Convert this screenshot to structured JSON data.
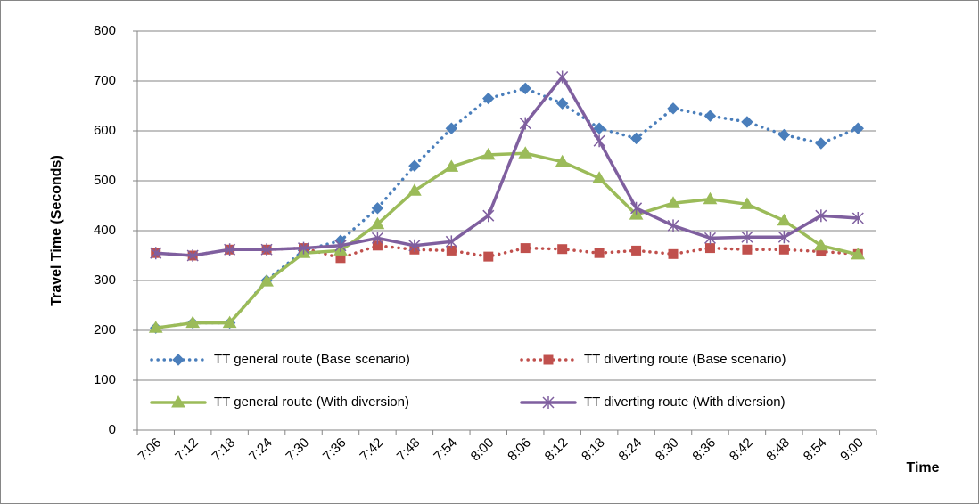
{
  "chart_data": {
    "type": "line",
    "y_label": "Travel Time (Seconds)",
    "x_label": "Time",
    "categories": [
      "7:06",
      "7:12",
      "7:18",
      "7:24",
      "7:30",
      "7:36",
      "7:42",
      "7:48",
      "7:54",
      "8:00",
      "8:06",
      "8:12",
      "8:18",
      "8:24",
      "8:30",
      "8:36",
      "8:42",
      "8:48",
      "8:54",
      "9:00"
    ],
    "ylim": [
      0,
      800
    ],
    "yticks": [
      0,
      100,
      200,
      300,
      400,
      500,
      600,
      700,
      800
    ],
    "grid": true,
    "series": [
      {
        "name": "TT general route (Base scenario)",
        "color": "#4a7ebb",
        "style": "dotted",
        "marker": "diamond",
        "values": [
          205,
          215,
          215,
          300,
          360,
          380,
          445,
          530,
          605,
          665,
          685,
          655,
          605,
          585,
          645,
          630,
          618,
          592,
          575,
          605
        ]
      },
      {
        "name": "TT diverting route (Base scenario)",
        "color": "#c0504d",
        "style": "dotted",
        "marker": "square",
        "values": [
          355,
          350,
          362,
          362,
          365,
          345,
          370,
          362,
          360,
          348,
          365,
          363,
          355,
          360,
          353,
          365,
          362,
          362,
          358,
          353
        ]
      },
      {
        "name": "TT general route (With diversion)",
        "color": "#9bbb59",
        "style": "solid",
        "marker": "triangle",
        "values": [
          205,
          215,
          215,
          298,
          355,
          360,
          413,
          480,
          528,
          552,
          555,
          538,
          505,
          432,
          455,
          463,
          453,
          420,
          370,
          352
        ]
      },
      {
        "name": "TT diverting route (With diversion)",
        "color": "#7f5f9f",
        "style": "solid",
        "marker": "star",
        "values": [
          355,
          350,
          362,
          362,
          365,
          370,
          385,
          370,
          378,
          430,
          615,
          708,
          580,
          445,
          410,
          385,
          387,
          387,
          430,
          425
        ]
      }
    ]
  }
}
